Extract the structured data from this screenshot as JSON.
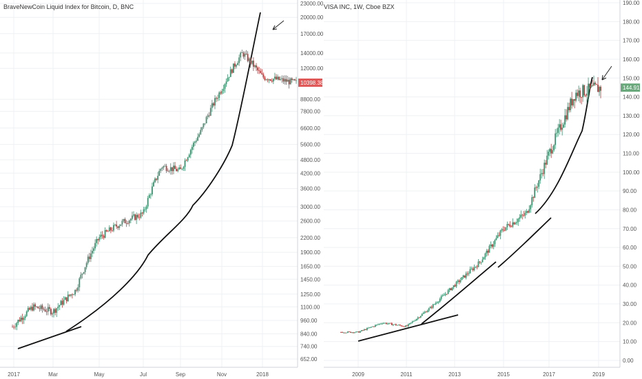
{
  "colors": {
    "up": "#3d8f6f",
    "down": "#b53a3a",
    "grid": "#eef0f3",
    "trend": "#111111",
    "badge_btc": "#e05757",
    "badge_visa": "#6aa97c"
  },
  "chart_data": [
    {
      "type": "candlestick",
      "title": "BraveNewCoin Liquid Index for Bitcoin, D, BNC",
      "y_scale": "log",
      "ylim": [
        630,
        23000
      ],
      "y_ticks": [
        "23000.00",
        "20000.00",
        "17000.00",
        "14000.00",
        "12000.00",
        "10398.38",
        "8800.00",
        "7800.00",
        "6600.00",
        "5600.00",
        "4800.00",
        "4200.00",
        "3600.00",
        "3000.00",
        "2600.00",
        "2200.00",
        "1900.00",
        "1650.00",
        "1450.00",
        "1250.00",
        "1100.00",
        "960.00",
        "840.00",
        "740.00",
        "652.00"
      ],
      "x_ticks": [
        "2017",
        "Mar",
        "May",
        "Jul",
        "Sep",
        "Nov",
        "2018"
      ],
      "last_price": "10398.38",
      "series": [
        {
          "name": "",
          "x": [
            "2017-01",
            "2017-02",
            "2017-03",
            "2017-04",
            "2017-05",
            "2017-06",
            "2017-07",
            "2017-08",
            "2017-09",
            "2017-10",
            "2017-11",
            "2017-12",
            "2018-01",
            "2018-02"
          ],
          "values": [
            900,
            1100,
            1050,
            1300,
            2200,
            2550,
            2800,
            4500,
            4300,
            6400,
            9800,
            14000,
            11000,
            10398
          ]
        }
      ],
      "annotations": [
        "trend line",
        "arrow"
      ]
    },
    {
      "type": "candlestick",
      "title": "VISA INC, 1W, Cboe BZX",
      "y_scale": "linear",
      "ylim": [
        0,
        190
      ],
      "y_ticks": [
        "190.00",
        "180.00",
        "170.00",
        "160.00",
        "150.00",
        "144.91",
        "140.00",
        "130.00",
        "120.00",
        "110.00",
        "100.00",
        "90.00",
        "80.00",
        "70.00",
        "60.00",
        "50.00",
        "40.00",
        "30.00",
        "20.00",
        "10.00",
        "0.00"
      ],
      "x_ticks": [
        "2009",
        "2011",
        "2013",
        "2015",
        "2017",
        "2019"
      ],
      "last_price": "144.91",
      "series": [
        {
          "name": "",
          "x": [
            "2008",
            "2009",
            "2010",
            "2011",
            "2012",
            "2013",
            "2014",
            "2015",
            "2016",
            "2017",
            "2018",
            "2019"
          ],
          "values": [
            15,
            15,
            20,
            18,
            28,
            40,
            52,
            70,
            78,
            110,
            142,
            144.91
          ]
        }
      ],
      "annotations": [
        "trend line",
        "arrow"
      ]
    }
  ]
}
